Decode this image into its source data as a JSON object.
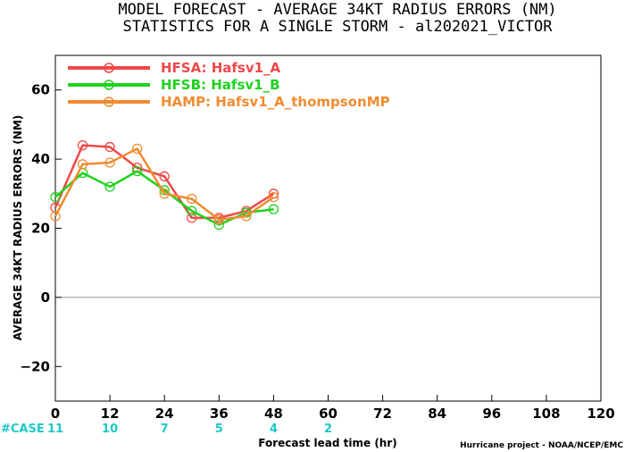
{
  "title_line1": "MODEL FORECAST - AVERAGE 34KT RADIUS ERRORS (NM)",
  "title_line2": "STATISTICS FOR A SINGLE STORM - al202021_VICTOR",
  "credit": "Hurricane project - NOAA/NCEP/EMC",
  "colors": {
    "cyan": "#1ec8c8",
    "zero_line": "#999999"
  },
  "chart_data": {
    "type": "line",
    "xlabel": "Forecast lead time (hr)",
    "ylabel": "AVERAGE 34KT RADIUS ERRORS (NM)",
    "xlim": [
      0,
      120
    ],
    "ylim": [
      -30,
      70
    ],
    "x_ticks": [
      0,
      12,
      24,
      36,
      48,
      60,
      72,
      84,
      96,
      108,
      120
    ],
    "y_ticks": [
      -20,
      0,
      20,
      40,
      60
    ],
    "grid": false,
    "legend_position": "top-left",
    "series": [
      {
        "name": "HFSA: Hafsv1_A",
        "color": "#f04848",
        "x": [
          0,
          6,
          12,
          18,
          24,
          30,
          36,
          42,
          48
        ],
        "y": [
          26,
          44,
          43.5,
          37.5,
          35,
          23,
          23,
          25,
          30
        ]
      },
      {
        "name": "HFSB: Hafsv1_B",
        "color": "#1ed21e",
        "x": [
          0,
          6,
          12,
          18,
          24,
          30,
          36,
          42,
          48
        ],
        "y": [
          29,
          36,
          32,
          36.5,
          31,
          25,
          21,
          24.5,
          25.5
        ]
      },
      {
        "name": "HAMP: Hafsv1_A_thompsonMP",
        "color": "#f08c30",
        "x": [
          0,
          6,
          12,
          18,
          24,
          30,
          36,
          42,
          48
        ],
        "y": [
          23.5,
          38.5,
          39,
          43,
          30,
          28.5,
          22.5,
          23.5,
          29
        ]
      }
    ],
    "cases": {
      "label": "#CASE",
      "x": [
        0,
        12,
        24,
        36,
        48,
        60
      ],
      "counts": [
        "11",
        "10",
        "7",
        "5",
        "4",
        "2"
      ]
    }
  }
}
